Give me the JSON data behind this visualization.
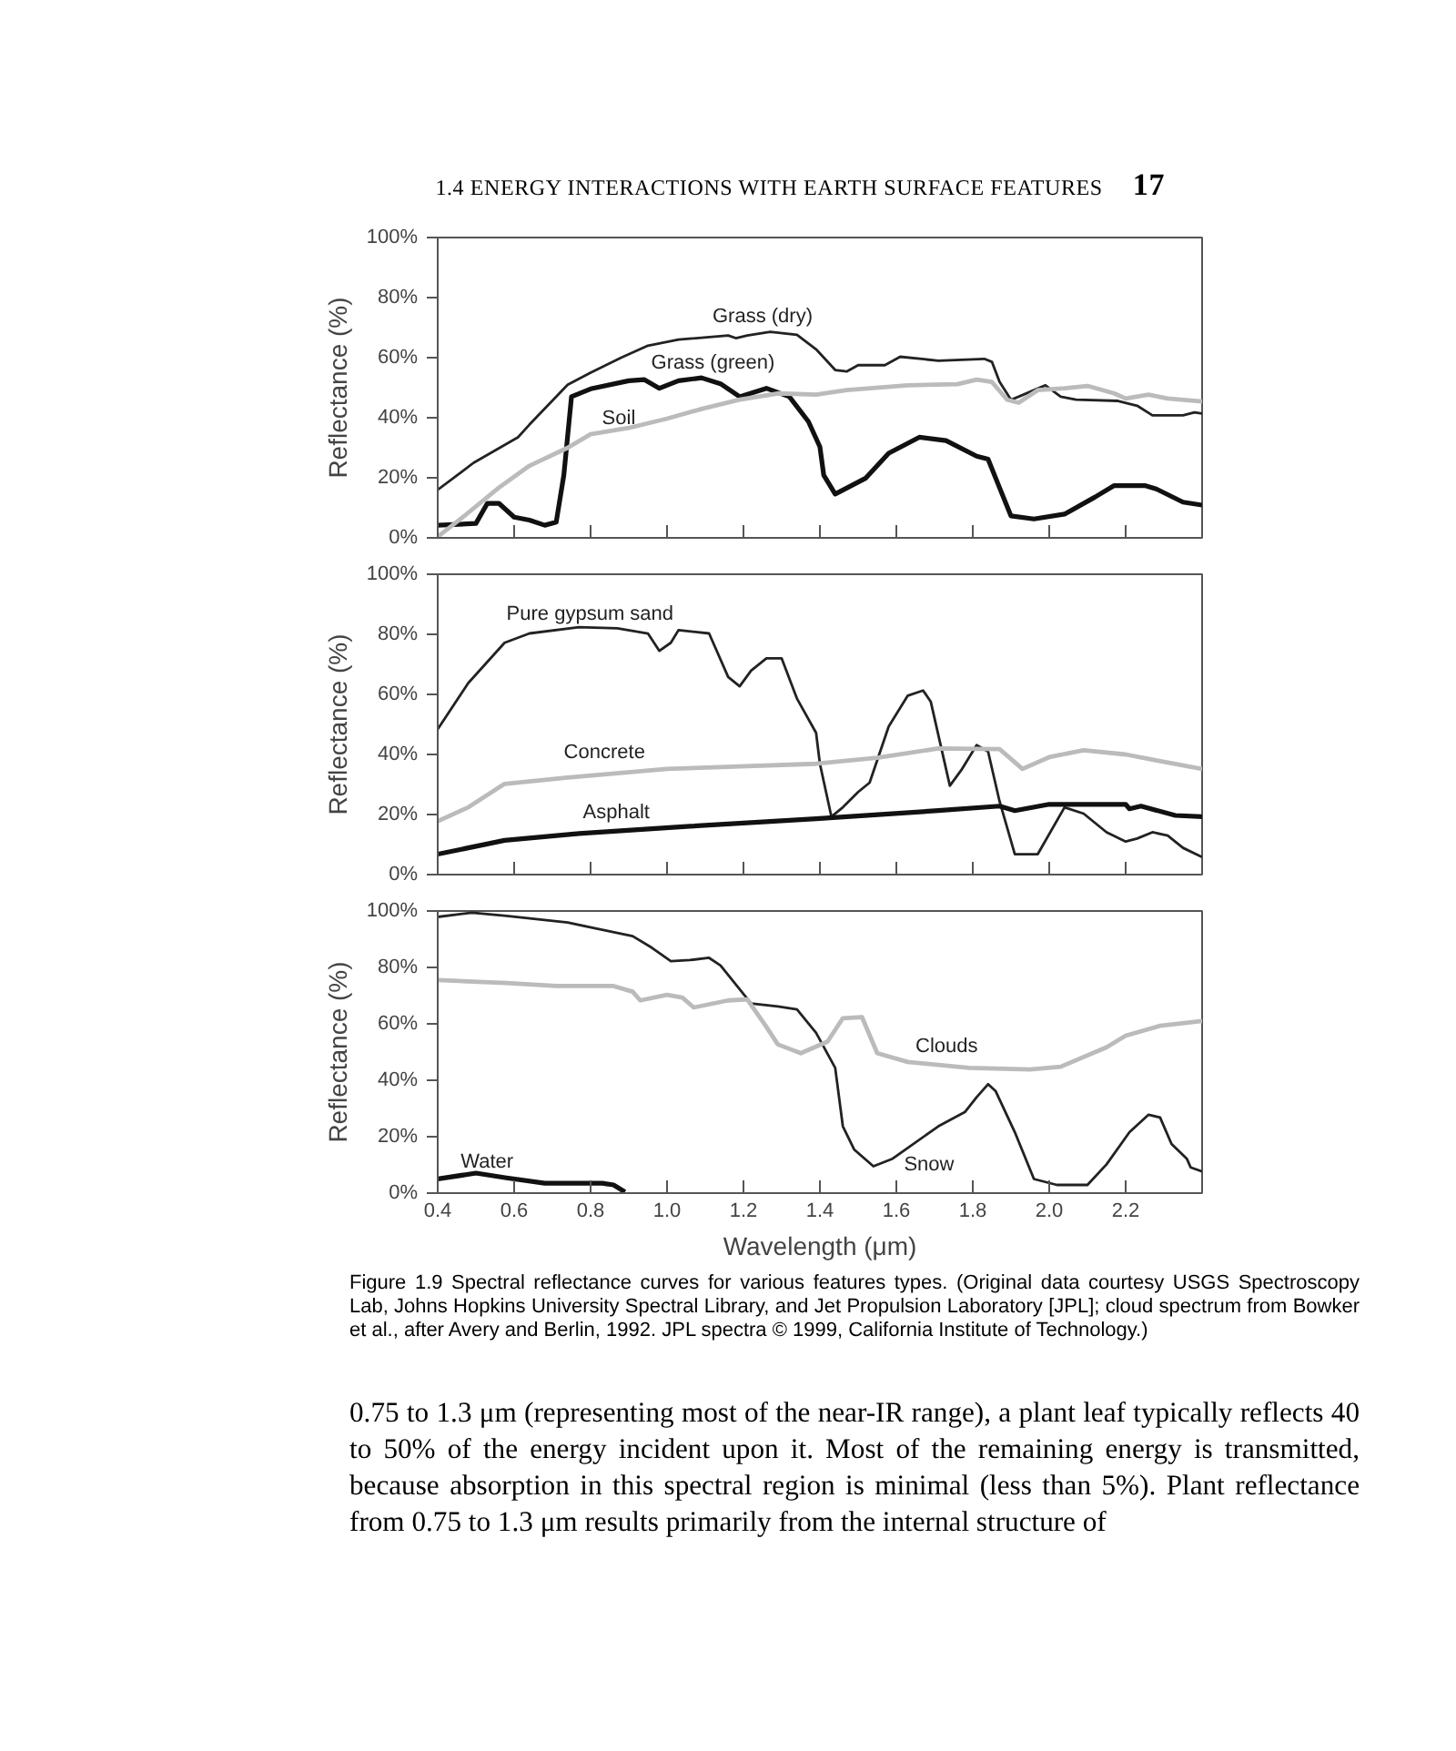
{
  "chart_data": [
    {
      "type": "line",
      "annotations": [
        "1.4 ENERGY INTERACTIONS WITH EARTH SURFACE FEATURES",
        "17"
      ],
      "ylabel": "Reflectance (%)",
      "xlim": [
        0.4,
        2.4
      ],
      "ylim": [
        0,
        100
      ],
      "xticks": [
        0.4,
        0.6,
        0.8,
        1,
        1.2,
        1.4,
        1.6,
        1.8,
        2,
        2.2,
        2.4
      ],
      "yticks": [
        {
          "value": 0,
          "label": "0%"
        },
        {
          "value": 20,
          "label": "20%"
        },
        {
          "value": 40,
          "label": "40%"
        },
        {
          "value": 60,
          "label": "60%"
        },
        {
          "value": 80,
          "label": "80%"
        },
        {
          "value": 100,
          "label": "100%"
        }
      ],
      "tick_labels": "y",
      "grid": false,
      "legend": false,
      "series": [
        {
          "name": "Grass (dry)",
          "color": "#222222",
          "x": [
            0.4,
            0.494,
            0.61,
            0.64,
            0.74,
            0.8,
            0.88,
            0.95,
            1.03,
            1.16,
            1.18,
            1.21,
            1.27,
            1.34,
            1.39,
            1.44,
            1.47,
            1.5,
            1.57,
            1.61,
            1.71,
            1.83,
            1.85,
            1.87,
            1.9,
            1.92,
            1.99,
            2.03,
            2.07,
            2.18,
            2.23,
            2.27,
            2.35,
            2.38,
            2.4
          ],
          "values": [
            16,
            25,
            33.5,
            37.7,
            51,
            55,
            60,
            64,
            66,
            67.4,
            66.5,
            67.4,
            68.6,
            67.6,
            62.8,
            55.9,
            55.4,
            57.5,
            57.5,
            60.3,
            59,
            59.6,
            58.6,
            52,
            46,
            47,
            50.8,
            47,
            46,
            45.6,
            44,
            40.8,
            40.8,
            41.8,
            41.4
          ]
        },
        {
          "name": "Grass (green)",
          "color": "#111111",
          "x": [
            0.4,
            0.5,
            0.53,
            0.56,
            0.6,
            0.64,
            0.68,
            0.71,
            0.73,
            0.75,
            0.8,
            0.9,
            0.94,
            0.98,
            1.03,
            1.09,
            1.14,
            1.19,
            1.26,
            1.32,
            1.37,
            1.4,
            1.41,
            1.44,
            1.52,
            1.58,
            1.66,
            1.73,
            1.81,
            1.84,
            1.87,
            1.9,
            1.96,
            2.04,
            2.12,
            2.17,
            2.25,
            2.28,
            2.35,
            2.4
          ],
          "values": [
            4.2,
            4.8,
            11.5,
            11.5,
            6.9,
            5.9,
            4.2,
            5.2,
            20.9,
            47,
            49.6,
            52.3,
            52.7,
            49.8,
            52.3,
            53.3,
            51.3,
            47,
            49.8,
            47,
            38.7,
            30.3,
            20.9,
            14.6,
            19.9,
            28.2,
            33.5,
            32.4,
            27.2,
            26.2,
            16.7,
            7.3,
            6.3,
            7.9,
            13.6,
            17.4,
            17.4,
            16.3,
            11.9,
            10.9
          ]
        },
        {
          "name": "Soil",
          "color": "#bbbbbb",
          "x": [
            0.4,
            0.46,
            0.56,
            0.64,
            0.74,
            0.8,
            0.9,
            1.0,
            1.09,
            1.19,
            1.29,
            1.39,
            1.47,
            1.63,
            1.76,
            1.81,
            1.85,
            1.89,
            1.92,
            1.97,
            2.04,
            2.1,
            2.17,
            2.2,
            2.26,
            2.31,
            2.4
          ],
          "values": [
            0.4,
            6.3,
            16.7,
            24,
            30,
            34.5,
            36.6,
            39.7,
            42.9,
            46,
            48.1,
            47.7,
            49.2,
            50.8,
            51.2,
            52.7,
            51.9,
            46,
            45,
            49.2,
            49.8,
            50.6,
            48.1,
            46.4,
            47.7,
            46.4,
            45.4
          ]
        }
      ]
    },
    {
      "type": "line",
      "ylabel": "Reflectance (%)",
      "xlim": [
        0.4,
        2.4
      ],
      "ylim": [
        0,
        100
      ],
      "xticks": [
        0.4,
        0.6,
        0.8,
        1,
        1.2,
        1.4,
        1.6,
        1.8,
        2,
        2.2,
        2.4
      ],
      "yticks": [
        {
          "value": 0,
          "label": "0%"
        },
        {
          "value": 20,
          "label": "20%"
        },
        {
          "value": 40,
          "label": "40%"
        },
        {
          "value": 60,
          "label": "60%"
        },
        {
          "value": 80,
          "label": "80%"
        },
        {
          "value": 100,
          "label": "100%"
        }
      ],
      "tick_labels": "y",
      "grid": false,
      "legend": false,
      "series": [
        {
          "name": "Pure gypsum sand",
          "color": "#222222",
          "x": [
            0.4,
            0.48,
            0.575,
            0.64,
            0.77,
            0.87,
            0.95,
            0.98,
            1.01,
            1.03,
            1.11,
            1.16,
            1.19,
            1.22,
            1.26,
            1.3,
            1.34,
            1.39,
            1.4,
            1.43,
            1.46,
            1.5,
            1.53,
            1.58,
            1.63,
            1.67,
            1.69,
            1.74,
            1.77,
            1.81,
            1.84,
            1.87,
            1.91,
            1.97,
            2.04,
            2.09,
            2.15,
            2.2,
            2.23,
            2.27,
            2.31,
            2.35,
            2.4
          ],
          "values": [
            48.4,
            63.8,
            77.2,
            80.3,
            82.4,
            82,
            80.3,
            74.5,
            77.2,
            81.4,
            80.3,
            65.8,
            62.7,
            67.9,
            72,
            72,
            58.6,
            47.2,
            36.9,
            19.3,
            22.4,
            27.5,
            30.6,
            49.3,
            59.6,
            61.3,
            57.6,
            29.6,
            34.8,
            43.1,
            41,
            24.4,
            6.8,
            6.8,
            22.4,
            20.3,
            14.1,
            11,
            12,
            14.1,
            13,
            8.9,
            5.8
          ]
        },
        {
          "name": "Concrete",
          "color": "#bbbbbb",
          "x": [
            0.4,
            0.48,
            0.575,
            0.74,
            1.0,
            1.39,
            1.55,
            1.71,
            1.87,
            1.93,
            2.0,
            2.09,
            2.2,
            2.31,
            2.4
          ],
          "values": [
            17.8,
            22.4,
            30.2,
            32.3,
            35.2,
            36.9,
            38.9,
            42,
            41.8,
            35.2,
            39.1,
            41.4,
            40,
            37.3,
            35.2
          ]
        },
        {
          "name": "Asphalt",
          "color": "#111111",
          "x": [
            0.4,
            0.575,
            0.77,
            1.06,
            1.39,
            1.71,
            1.87,
            1.91,
            2.0,
            2.2,
            2.21,
            2.24,
            2.33,
            2.4
          ],
          "values": [
            6.8,
            11.4,
            13.7,
            16.1,
            18.6,
            21.3,
            22.8,
            21.3,
            23.4,
            23.4,
            21.9,
            22.8,
            19.7,
            19.3
          ]
        }
      ]
    },
    {
      "type": "line",
      "ylabel": "Reflectance (%)",
      "xlabel": "Wavelength (μm)",
      "xlim": [
        0.4,
        2.4
      ],
      "ylim": [
        0,
        100
      ],
      "xticks": [
        0.4,
        0.6,
        0.8,
        {
          "value": 1,
          "label": "1.0"
        },
        1.2,
        1.4,
        1.6,
        1.8,
        {
          "value": 2,
          "label": "2.0"
        },
        2.2,
        {
          "value": 2.4,
          "label": null
        }
      ],
      "yticks": [
        {
          "value": 0,
          "label": "0%"
        },
        {
          "value": 20,
          "label": "20%"
        },
        {
          "value": 40,
          "label": "40%"
        },
        {
          "value": 60,
          "label": "60%"
        },
        {
          "value": 80,
          "label": "80%"
        },
        {
          "value": 100,
          "label": "100%"
        }
      ],
      "grid": false,
      "legend": false,
      "annotations": [
        "Figure 1.9 Spectral reflectance curves for various features types. (Original data courtesy USGS Spectroscopy Lab, Johns Hopkins University Spectral Library, and Jet Propulsion Laboratory [JPL]; cloud spectrum from Bowker et al., after Avery and Berlin, 1992. JPL spectra © 1999, California Institute of Technology.)",
        "0.75 to 1.3 μm (representing most of the near-IR range), a plant leaf typically reflects 40 to 50% of the energy incident upon it. Most of the remaining energy is transmitted, because absorption in this spectral region is minimal (less than 5%). Plant reflectance from 0.75 to 1.3 μm results primarily from the internal structure of"
      ],
      "series": [
        {
          "name": "Snow",
          "color": "#222222",
          "x": [
            0.4,
            0.49,
            0.58,
            0.74,
            0.91,
            0.96,
            1.01,
            1.06,
            1.11,
            1.14,
            1.22,
            1.29,
            1.34,
            1.39,
            1.44,
            1.46,
            1.49,
            1.54,
            1.59,
            1.71,
            1.78,
            1.81,
            1.84,
            1.86,
            1.91,
            1.96,
            2.02,
            2.1,
            2.15,
            2.21,
            2.26,
            2.29,
            2.32,
            2.36,
            2.37,
            2.4
          ],
          "values": [
            97.9,
            99.4,
            98.3,
            95.9,
            91.1,
            87,
            82.2,
            82.6,
            83.4,
            80.7,
            67.2,
            66.2,
            65.1,
            56.8,
            44.4,
            23.7,
            15.4,
            9.5,
            12.2,
            23.7,
            28.8,
            34,
            38.6,
            36.1,
            21.6,
            5,
            2.9,
            2.9,
            10.2,
            21.6,
            27.8,
            26.8,
            17.4,
            12.2,
            9.1,
            7.7
          ]
        },
        {
          "name": "Clouds",
          "color": "#bbbbbb",
          "x": [
            0.4,
            0.58,
            0.71,
            0.86,
            0.91,
            0.93,
            1.0,
            1.04,
            1.07,
            1.16,
            1.21,
            1.26,
            1.29,
            1.35,
            1.42,
            1.46,
            1.51,
            1.55,
            1.63,
            1.79,
            1.95,
            2.03,
            2.15,
            2.2,
            2.29,
            2.4
          ],
          "values": [
            75.5,
            74.5,
            73.4,
            73.4,
            71.4,
            68.3,
            70.3,
            69.3,
            65.8,
            68.3,
            68.7,
            58.9,
            52.7,
            49.6,
            53.7,
            62,
            62.4,
            49.6,
            46.5,
            44.4,
            43.8,
            44.8,
            51.7,
            55.8,
            59.3,
            61
          ]
        },
        {
          "name": "Water",
          "color": "#111111",
          "x": [
            0.4,
            0.5,
            0.58,
            0.68,
            0.83,
            0.86,
            0.89
          ],
          "values": [
            5,
            7.1,
            5.4,
            3.5,
            3.5,
            2.9,
            0.4
          ]
        }
      ]
    }
  ]
}
